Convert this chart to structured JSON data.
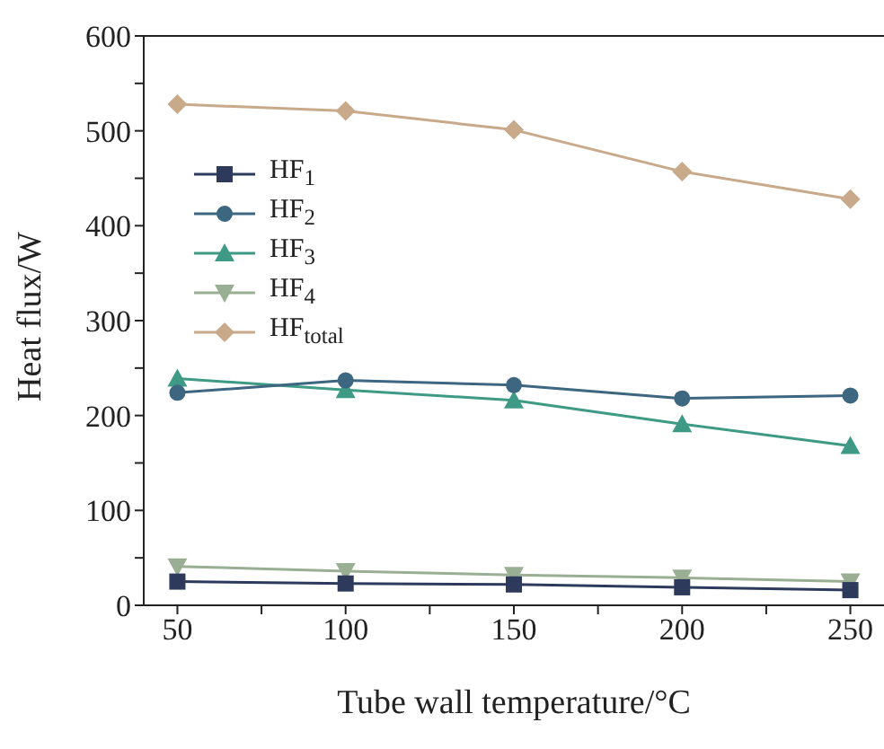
{
  "chart_data": {
    "type": "line",
    "xlabel": "Tube wall temperature/°C",
    "ylabel": "Heat flux/W",
    "x": [
      50,
      100,
      150,
      200,
      250
    ],
    "series": [
      {
        "name": "HF$_{1}$",
        "color": "#2d3a5c",
        "marker": "square",
        "values": [
          25,
          23,
          22,
          19,
          16
        ]
      },
      {
        "name": "HF$_{2}$",
        "color": "#3d6680",
        "marker": "circle",
        "values": [
          224,
          237,
          232,
          218,
          221
        ]
      },
      {
        "name": "HF$_{3}$",
        "color": "#3e9a85",
        "marker": "triangle",
        "values": [
          239,
          227,
          216,
          191,
          168
        ]
      },
      {
        "name": "HF$_{4}$",
        "color": "#9aae94",
        "marker": "triangle-down",
        "values": [
          41,
          36,
          32,
          29,
          25
        ]
      },
      {
        "name": "HF$_{total}$",
        "color": "#c8a98a",
        "marker": "diamond",
        "values": [
          528,
          521,
          501,
          457,
          428
        ]
      }
    ],
    "xlim": [
      40,
      260
    ],
    "xticks": [
      50,
      {
        "value": 75,
        "label": null
      },
      100,
      {
        "value": 125,
        "label": null
      },
      150,
      {
        "value": 175,
        "label": null
      },
      200,
      {
        "value": 225,
        "label": null
      },
      250
    ],
    "ylim": [
      0,
      600
    ],
    "yticks": [
      0,
      {
        "value": 50,
        "label": null
      },
      100,
      {
        "value": 150,
        "label": null
      },
      200,
      {
        "value": 250,
        "label": null
      },
      300,
      {
        "value": 350,
        "label": null
      },
      400,
      {
        "value": 450,
        "label": null
      },
      500,
      {
        "value": 550,
        "label": null
      },
      600
    ],
    "legend": "top left",
    "grid": false
  }
}
